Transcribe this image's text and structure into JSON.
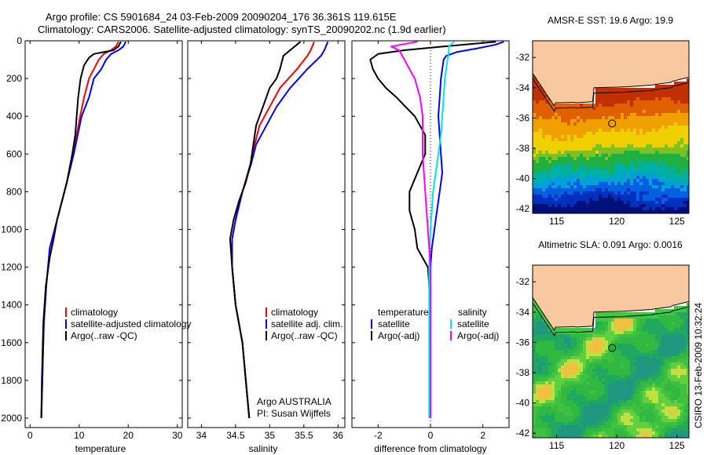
{
  "figure": {
    "title_line1": "Argo profile: CS 5901684_24 03-Feb-2009 20090204_176 36.361S 119.615E",
    "title_line2": "Climatology: CARS2006. Satellite-adjusted climatology: synTS_20090202.nc (1.9d earlier)",
    "side_label": "CSIRO 13-Feb-2009 10:32:24",
    "credit_line1": "Argo AUSTRALIA",
    "credit_line2": "PI: Susan Wijffels"
  },
  "colors": {
    "climatology": "#ff0000",
    "satellite_adjusted": "#0000ff",
    "argo": "#000000",
    "sat_salinity": "#00e5e5",
    "argo_salinity": "#ff00ff",
    "land": "#f8c8a0"
  },
  "legends": {
    "temperature": [
      "climatology",
      "satellite-adjusted climatology",
      "Argo(..raw -QC)"
    ],
    "salinity": [
      "climatology",
      "satellite adj. clim.",
      "Argo(..raw -QC)"
    ],
    "difference": {
      "temperature_head": "temperature",
      "salinity_head": "salinity",
      "temperature_items": [
        "satellite",
        "Argo(-adj)"
      ],
      "salinity_items": [
        "satellite",
        "Argo(-adj)"
      ]
    }
  },
  "maps": {
    "sst": {
      "title": "AMSR-E SST: 19.6 Argo: 19.9",
      "x_ticks": [
        "115",
        "120",
        "125"
      ],
      "y_ticks": [
        "-32",
        "-34",
        "-36",
        "-38",
        "-40",
        "-42"
      ],
      "xlim": [
        113,
        126
      ],
      "ylim": [
        -42.3,
        -30.9
      ],
      "float_position": [
        119.615,
        -36.361
      ]
    },
    "sla": {
      "title": "Altimetric SLA: 0.091 Argo: 0.0016",
      "x_ticks": [
        "115",
        "120",
        "125"
      ],
      "y_ticks": [
        "-32",
        "-34",
        "-36",
        "-38",
        "-40",
        "-42"
      ],
      "xlim": [
        113,
        126
      ],
      "ylim": [
        -42.3,
        -30.9
      ],
      "float_position": [
        119.615,
        -36.361
      ]
    }
  },
  "chart_data": [
    {
      "type": "line",
      "xlabel": "temperature",
      "ylabel": "",
      "xlim": [
        -1,
        31
      ],
      "ylim": [
        2050,
        0
      ],
      "x_ticks": [
        "0",
        "10",
        "20",
        "30"
      ],
      "y_ticks": [
        "0",
        "200",
        "400",
        "600",
        "800",
        "1000",
        "1200",
        "1400",
        "1600",
        "1800",
        "2000"
      ],
      "series": [
        {
          "name": "climatology",
          "x": [
            18,
            17.5,
            16.5,
            15,
            14,
            13,
            12,
            11,
            10.2,
            9.5,
            8.8,
            7.5,
            6,
            5,
            4,
            3.3,
            2.8,
            2.5,
            2.3
          ],
          "y": [
            5,
            30,
            50,
            70,
            100,
            150,
            200,
            300,
            400,
            500,
            600,
            750,
            900,
            1000,
            1100,
            1300,
            1500,
            1800,
            2000
          ]
        },
        {
          "name": "satellite-adjusted climatology",
          "x": [
            19.5,
            19,
            18,
            16.5,
            15.5,
            14.5,
            13,
            12,
            10.5,
            9.7,
            8.9,
            7.5,
            6,
            5,
            4,
            3.3,
            2.8,
            2.5,
            2.3
          ],
          "y": [
            5,
            30,
            50,
            70,
            100,
            150,
            200,
            300,
            400,
            500,
            600,
            750,
            900,
            1000,
            1100,
            1300,
            1500,
            1800,
            2000
          ]
        },
        {
          "name": "Argo(..raw -QC)",
          "x": [
            18.5,
            18,
            17,
            15,
            13,
            12,
            11,
            10.3,
            9.8,
            9.5,
            9.2,
            8.6,
            7.5,
            6.5,
            5.5,
            4.8,
            4,
            3.2,
            2.7,
            2.4,
            2.3
          ],
          "y": [
            5,
            30,
            50,
            60,
            70,
            90,
            130,
            200,
            300,
            400,
            500,
            600,
            750,
            850,
            950,
            1050,
            1150,
            1300,
            1500,
            1800,
            2000
          ]
        }
      ]
    },
    {
      "type": "line",
      "xlabel": "salinity",
      "ylabel": "",
      "xlim": [
        33.8,
        36.1
      ],
      "ylim": [
        2050,
        0
      ],
      "x_ticks": [
        "34",
        "34.5",
        "35",
        "35.5",
        "36"
      ],
      "y_ticks": [],
      "series": [
        {
          "name": "climatology",
          "x": [
            35.65,
            35.6,
            35.55,
            35.4,
            35.15,
            35.0,
            34.85,
            34.78,
            34.72,
            34.6,
            34.5,
            34.45,
            34.45,
            34.5,
            34.6,
            34.65,
            34.7
          ],
          "y": [
            5,
            50,
            80,
            150,
            250,
            350,
            450,
            550,
            650,
            800,
            950,
            1050,
            1200,
            1400,
            1600,
            1800,
            2000
          ]
        },
        {
          "name": "satellite adj. clim.",
          "x": [
            35.85,
            35.8,
            35.75,
            35.55,
            35.3,
            35.1,
            34.95,
            34.8,
            34.73,
            34.6,
            34.5,
            34.45,
            34.45,
            34.5,
            34.6,
            34.65,
            34.7
          ],
          "y": [
            5,
            50,
            80,
            150,
            250,
            350,
            450,
            550,
            650,
            800,
            950,
            1050,
            1200,
            1400,
            1600,
            1800,
            2000
          ]
        },
        {
          "name": "Argo(..raw -QC)",
          "x": [
            35.45,
            35.3,
            35.2,
            35.15,
            35.1,
            35.0,
            34.9,
            34.8,
            34.76,
            34.72,
            34.65,
            34.55,
            34.47,
            34.42,
            34.45,
            34.5,
            34.6,
            34.65,
            34.7
          ],
          "y": [
            5,
            50,
            80,
            150,
            200,
            250,
            350,
            450,
            550,
            650,
            750,
            850,
            950,
            1050,
            1200,
            1400,
            1600,
            1800,
            2000
          ]
        }
      ]
    },
    {
      "type": "line",
      "xlabel": "difference from climatology",
      "ylabel": "",
      "xlim": [
        -3,
        3
      ],
      "ylim": [
        2050,
        0
      ],
      "x_ticks": [
        "-2",
        "0",
        "2"
      ],
      "y_ticks": [],
      "zero_line": true,
      "series": [
        {
          "name": "temperature satellite",
          "x": [
            2.8,
            2.5,
            1.8,
            1.0,
            0.6,
            0.5,
            0.45,
            0.4,
            0.35,
            0.3,
            0.35,
            0.4,
            0.45,
            0.35,
            0.25,
            0.15,
            0.05,
            0.0,
            0.0,
            0.0,
            0.0
          ],
          "y": [
            5,
            20,
            40,
            60,
            80,
            100,
            150,
            200,
            300,
            400,
            500,
            600,
            700,
            800,
            900,
            1000,
            1100,
            1200,
            1400,
            1700,
            2000
          ]
        },
        {
          "name": "temperature Argo(-adj)",
          "x": [
            2.5,
            0.5,
            -1.0,
            -2.0,
            -2.3,
            -2.2,
            -2.0,
            -1.7,
            -1.3,
            -0.6,
            -0.2,
            -0.2,
            -0.5,
            -0.8,
            -0.8,
            -0.6,
            -0.5,
            -0.1,
            0.0,
            0.0,
            0.0
          ],
          "y": [
            5,
            30,
            50,
            70,
            100,
            150,
            200,
            250,
            300,
            400,
            500,
            600,
            700,
            800,
            900,
            1000,
            1100,
            1200,
            1400,
            1700,
            2000
          ]
        },
        {
          "name": "salinity satellite",
          "x": [
            0.9,
            0.7,
            0.7,
            0.65,
            0.6,
            0.55,
            0.5,
            0.45,
            0.4,
            0.3,
            0.2,
            0.1,
            0.05,
            0.0,
            -0.05,
            -0.05
          ],
          "y": [
            5,
            30,
            60,
            100,
            150,
            200,
            300,
            400,
            500,
            600,
            700,
            800,
            900,
            1000,
            1200,
            2000
          ]
        },
        {
          "name": "salinity Argo(-adj)",
          "x": [
            -0.5,
            -1.5,
            -1.2,
            -1.0,
            -0.8,
            -0.6,
            -0.4,
            -0.3,
            -0.3,
            -0.2,
            -0.1,
            0.0,
            0.0,
            0.0
          ],
          "y": [
            5,
            30,
            50,
            100,
            150,
            200,
            300,
            400,
            600,
            800,
            1000,
            1200,
            1500,
            2000
          ]
        }
      ]
    }
  ]
}
